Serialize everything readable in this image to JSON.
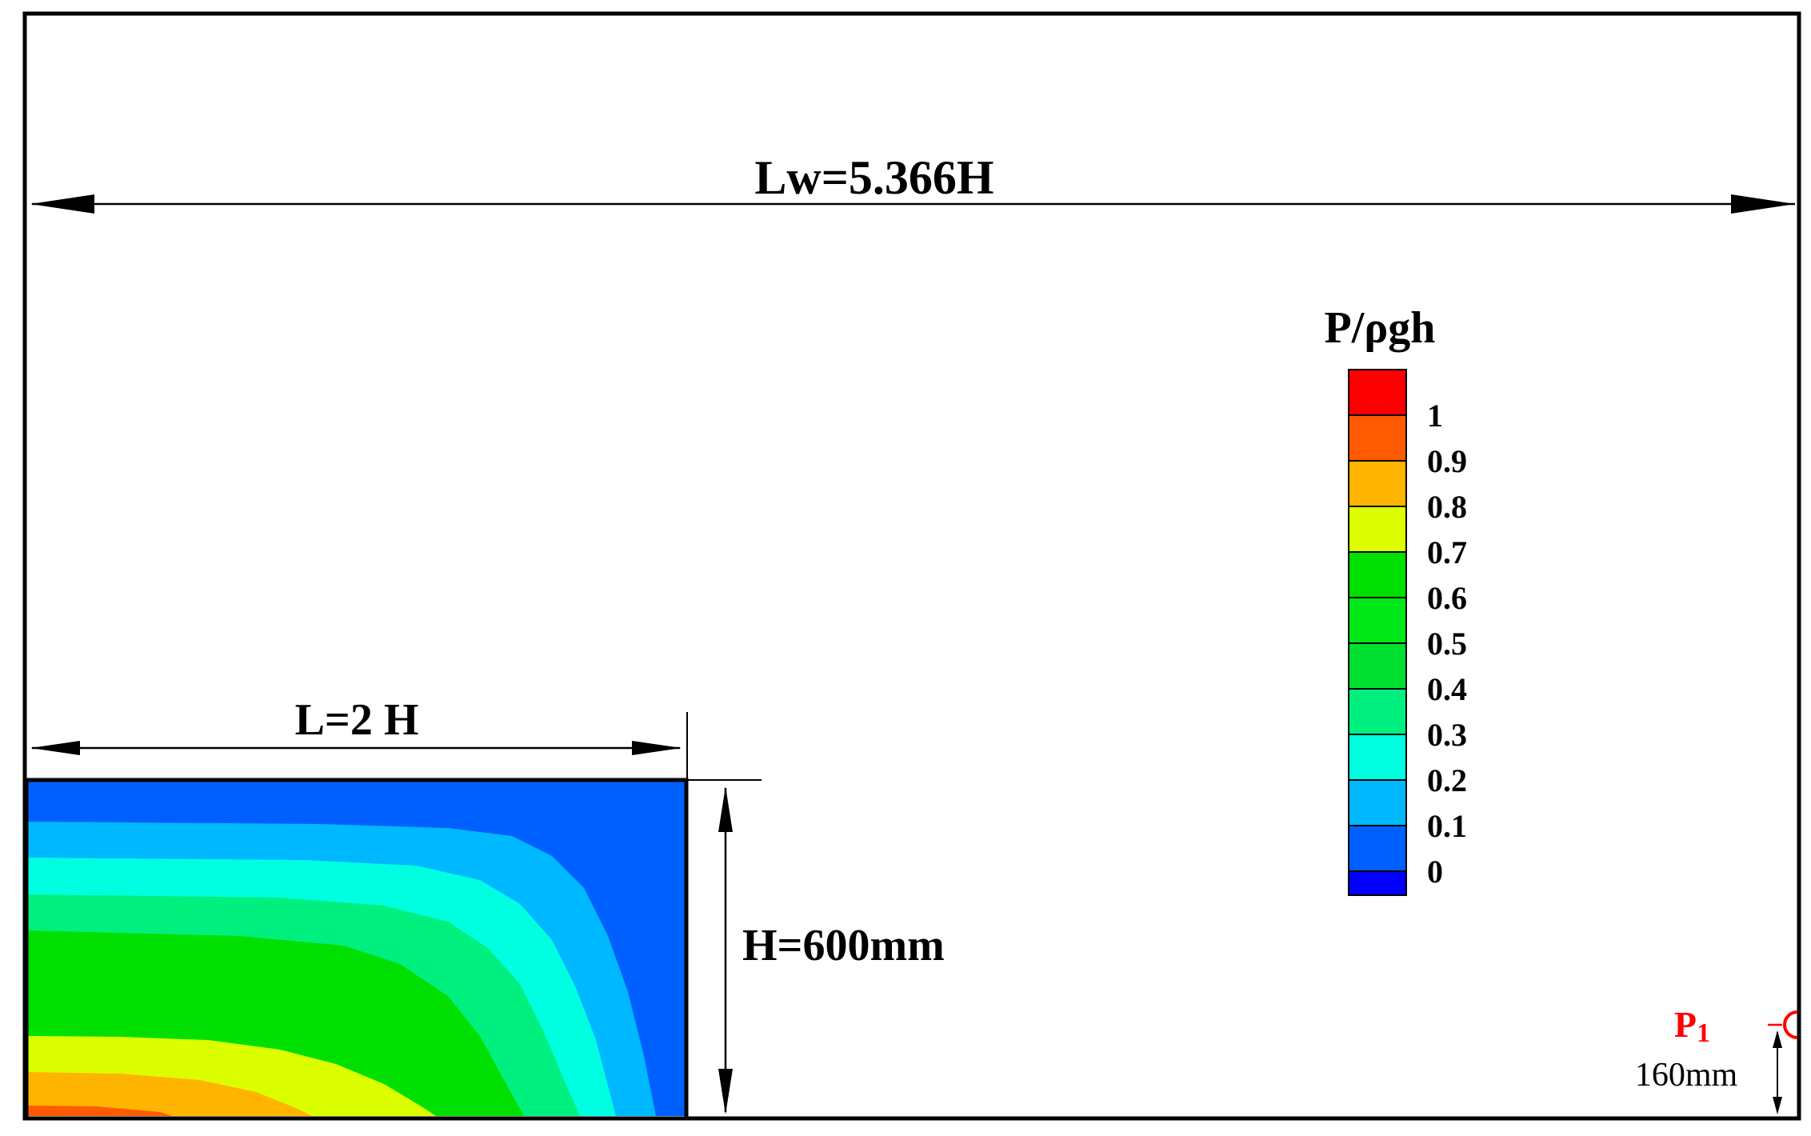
{
  "domain_width_label": "Lw=5.366H",
  "column_width_label": "L=2 H",
  "column_height_label": "H=600mm",
  "legend": {
    "title": "P/ρgh",
    "ticks": [
      "1",
      "0.9",
      "0.8",
      "0.7",
      "0.6",
      "0.5",
      "0.4",
      "0.3",
      "0.2",
      "0.1",
      "0"
    ],
    "colors": [
      "#ff0000",
      "#ff5a00",
      "#ffb400",
      "#dcff00",
      "#00e000",
      "#00e818",
      "#00e030",
      "#00f080",
      "#00ffe0",
      "#00b8ff",
      "#0060ff",
      "#0000ff"
    ]
  },
  "probe": {
    "label": "P",
    "subscript": "1",
    "height_label": "160mm",
    "color": "#ff0000"
  },
  "contour_colors": {
    "level_0": "#0060ff",
    "level_1": "#00b8ff",
    "level_2": "#00ffe0",
    "level_3": "#00f080",
    "level_4": "#00e000",
    "level_5": "#dcff00",
    "level_6": "#ffb400",
    "level_7": "#ff5a00"
  }
}
